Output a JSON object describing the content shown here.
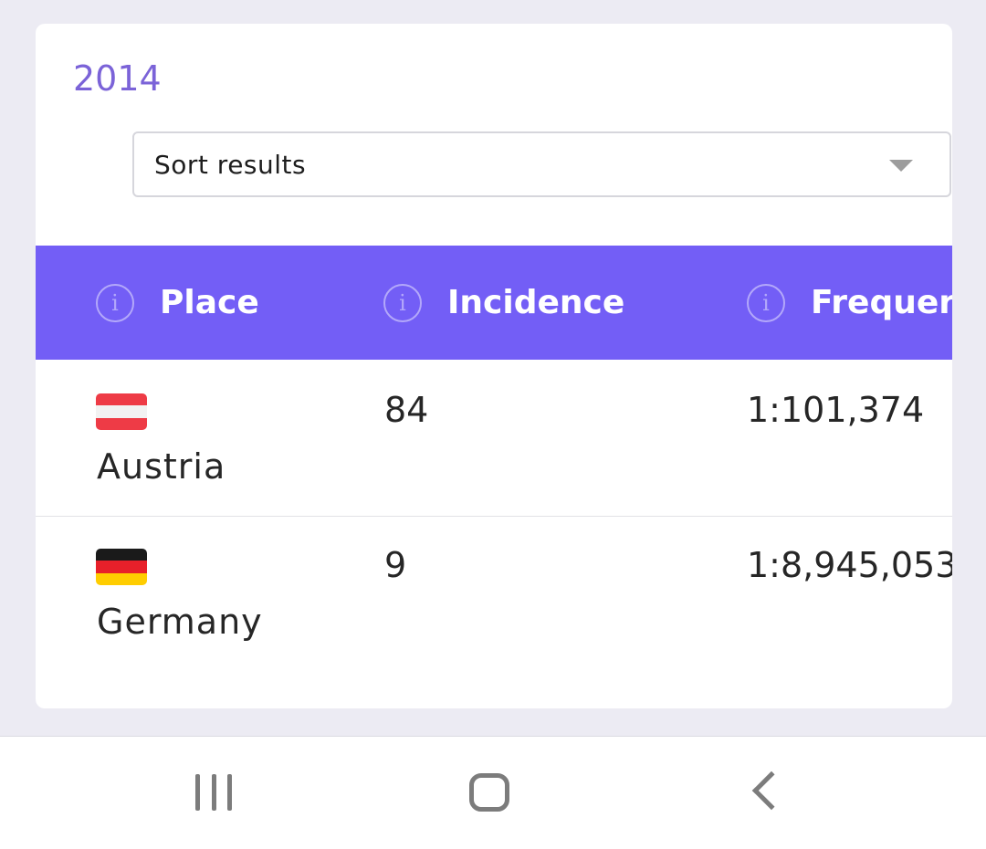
{
  "year": "2014",
  "sort": {
    "label": "Sort results",
    "icon": "chevron-down-icon"
  },
  "table": {
    "headers": [
      {
        "label": "Place",
        "icon": "info-icon"
      },
      {
        "label": "Incidence",
        "icon": "info-icon"
      },
      {
        "label": "Frequer",
        "icon": "info-icon"
      }
    ],
    "rows": [
      {
        "country": "Austria",
        "flag_colors": [
          "#ee3b46",
          "#f2f2f2",
          "#ee3b46"
        ],
        "incidence": "84",
        "frequency": "1:101,374"
      },
      {
        "country": "Germany",
        "flag_colors": [
          "#1a1a1a",
          "#e8202a",
          "#ffcd00"
        ],
        "incidence": "9",
        "frequency": "1:8,945,053"
      }
    ]
  },
  "colors": {
    "accent": "#735ef6",
    "year_text": "#7b63d8"
  },
  "navbar": {
    "recents_icon": "recents-icon",
    "home_icon": "home-icon",
    "back_icon": "back-icon"
  }
}
